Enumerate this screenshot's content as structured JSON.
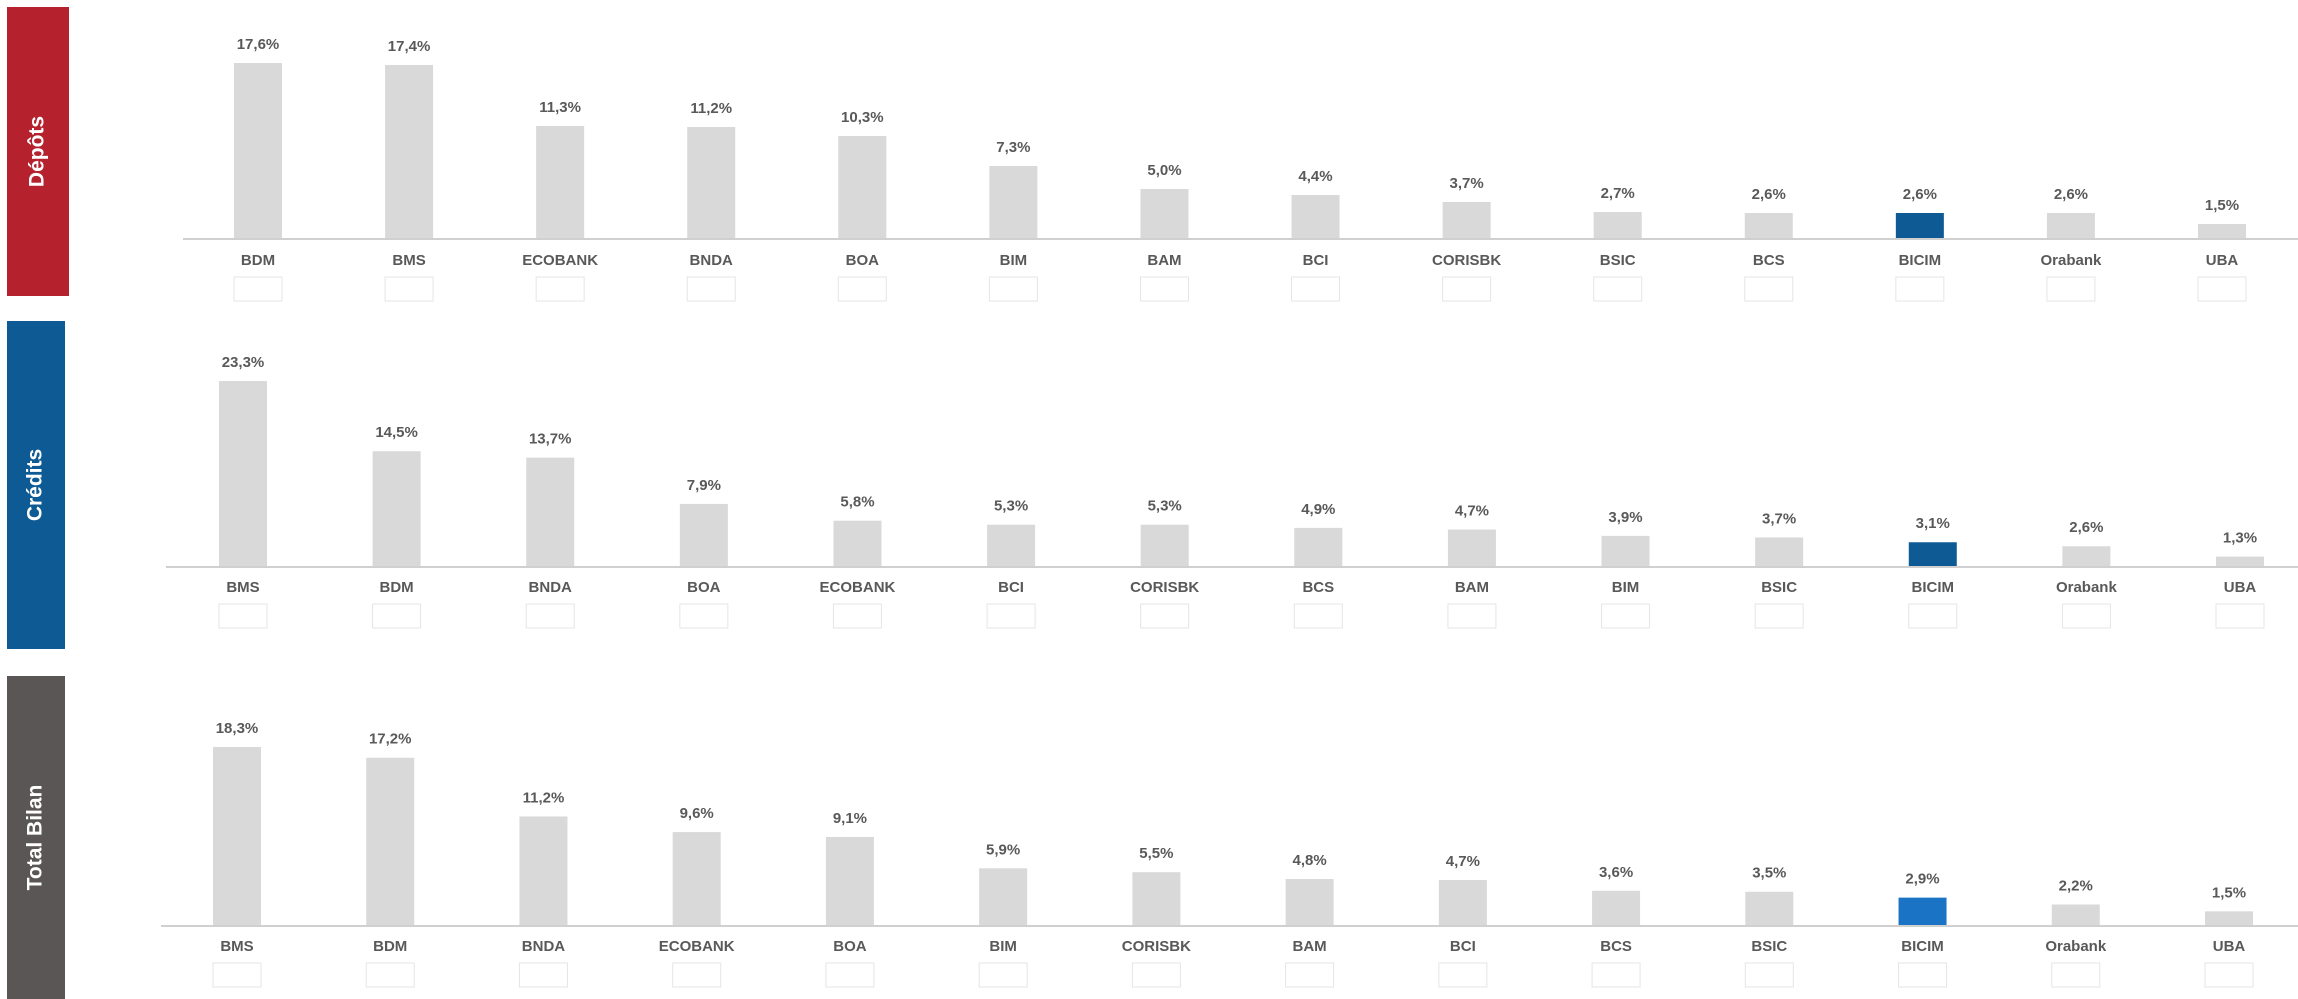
{
  "chart_data": [
    {
      "type": "bar",
      "title": "Dépôts",
      "categories": [
        "BDM",
        "BMS",
        "ECOBANK",
        "BNDA",
        "BOA",
        "BIM",
        "BAM",
        "BCI",
        "CORISBK",
        "BSIC",
        "BCS",
        "BICIM",
        "Orabank",
        "UBA"
      ],
      "values": [
        17.6,
        17.4,
        11.3,
        11.2,
        10.3,
        7.3,
        5.0,
        4.4,
        3.7,
        2.7,
        2.6,
        2.6,
        2.6,
        1.5
      ],
      "value_labels": [
        "17,6%",
        "17,4%",
        "11,3%",
        "11,2%",
        "10,3%",
        "7,3%",
        "5,0%",
        "4,4%",
        "3,7%",
        "2,7%",
        "2,6%",
        "2,6%",
        "2,6%",
        "1,5%"
      ],
      "colors": [
        "#d9d9d9",
        "#d9d9d9",
        "#d9d9d9",
        "#d9d9d9",
        "#d9d9d9",
        "#d9d9d9",
        "#d9d9d9",
        "#d9d9d9",
        "#d9d9d9",
        "#d9d9d9",
        "#d9d9d9",
        "#0d5a94",
        "#d9d9d9",
        "#d9d9d9"
      ]
    },
    {
      "type": "bar",
      "title": "Crédits",
      "categories": [
        "BMS",
        "BDM",
        "BNDA",
        "BOA",
        "ECOBANK",
        "BCI",
        "CORISBK",
        "BCS",
        "BAM",
        "BIM",
        "BSIC",
        "BICIM",
        "Orabank",
        "UBA"
      ],
      "values": [
        23.3,
        14.5,
        13.7,
        7.9,
        5.8,
        5.3,
        5.3,
        4.9,
        4.7,
        3.9,
        3.7,
        3.1,
        2.6,
        1.3
      ],
      "value_labels": [
        "23,3%",
        "14,5%",
        "13,7%",
        "7,9%",
        "5,8%",
        "5,3%",
        "5,3%",
        "4,9%",
        "4,7%",
        "3,9%",
        "3,7%",
        "3,1%",
        "2,6%",
        "1,3%"
      ],
      "colors": [
        "#d9d9d9",
        "#d9d9d9",
        "#d9d9d9",
        "#d9d9d9",
        "#d9d9d9",
        "#d9d9d9",
        "#d9d9d9",
        "#d9d9d9",
        "#d9d9d9",
        "#d9d9d9",
        "#d9d9d9",
        "#0d5a94",
        "#d9d9d9",
        "#d9d9d9"
      ]
    },
    {
      "type": "bar",
      "title": "Total Bilan",
      "categories": [
        "BMS",
        "BDM",
        "BNDA",
        "ECOBANK",
        "BOA",
        "BIM",
        "CORISBK",
        "BAM",
        "BCI",
        "BCS",
        "BSIC",
        "BICIM",
        "Orabank",
        "UBA"
      ],
      "values": [
        18.3,
        17.2,
        11.2,
        9.6,
        9.1,
        5.9,
        5.5,
        4.8,
        4.7,
        3.6,
        3.5,
        2.9,
        2.2,
        1.5
      ],
      "value_labels": [
        "18,3%",
        "17,2%",
        "11,2%",
        "9,6%",
        "9,1%",
        "5,9%",
        "5,5%",
        "4,8%",
        "4,7%",
        "3,6%",
        "3,5%",
        "2,9%",
        "2,2%",
        "1,5%"
      ],
      "colors": [
        "#d9d9d9",
        "#d9d9d9",
        "#d9d9d9",
        "#d9d9d9",
        "#d9d9d9",
        "#d9d9d9",
        "#d9d9d9",
        "#d9d9d9",
        "#d9d9d9",
        "#d9d9d9",
        "#d9d9d9",
        "#1a73c4",
        "#d9d9d9",
        "#d9d9d9"
      ]
    }
  ]
}
